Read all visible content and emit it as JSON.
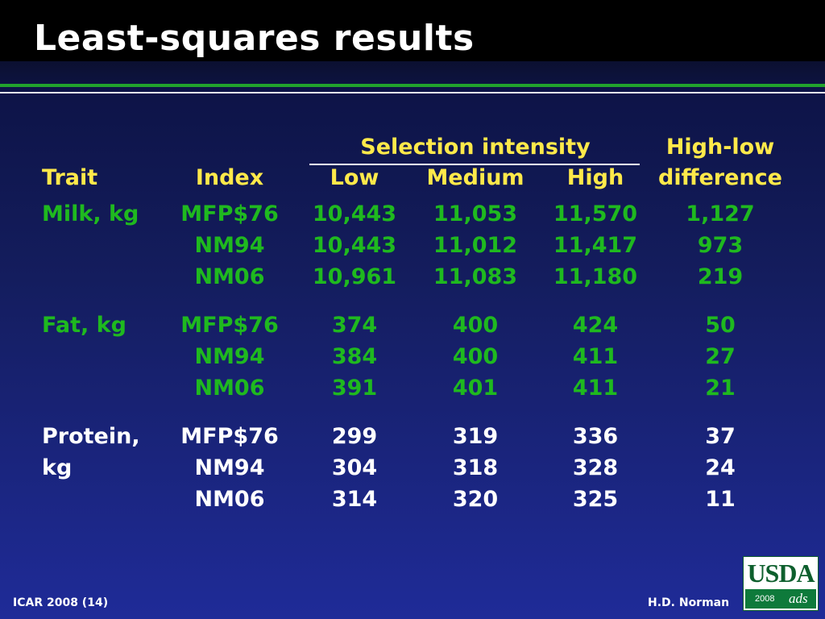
{
  "title": "Least-squares results",
  "header": {
    "selection_intensity": "Selection intensity",
    "high_low_line1": "High-low",
    "high_low_line2": "difference",
    "trait": "Trait",
    "index": "Index",
    "low": "Low",
    "medium": "Medium",
    "high": "High"
  },
  "rows": [
    {
      "trait": "Milk, kg",
      "index": "MFP$76",
      "low": "10,443",
      "medium": "11,053",
      "high": "11,570",
      "diff": "1,127"
    },
    {
      "trait": "",
      "index": "NM94",
      "low": "10,443",
      "medium": "11,012",
      "high": "11,417",
      "diff": "973"
    },
    {
      "trait": "",
      "index": "NM06",
      "low": "10,961",
      "medium": "11,083",
      "high": "11,180",
      "diff": "219"
    },
    {
      "trait": "Fat, kg",
      "index": "MFP$76",
      "low": "374",
      "medium": "400",
      "high": "424",
      "diff": "50"
    },
    {
      "trait": "",
      "index": "NM94",
      "low": "384",
      "medium": "400",
      "high": "411",
      "diff": "27"
    },
    {
      "trait": "",
      "index": "NM06",
      "low": "391",
      "medium": "401",
      "high": "411",
      "diff": "21"
    },
    {
      "trait": "Protein,",
      "index": "MFP$76",
      "low": "299",
      "medium": "319",
      "high": "336",
      "diff": "37"
    },
    {
      "trait": "kg",
      "index": "NM94",
      "low": "304",
      "medium": "318",
      "high": "328",
      "diff": "24"
    },
    {
      "trait": "",
      "index": "NM06",
      "low": "314",
      "medium": "320",
      "high": "325",
      "diff": "11"
    }
  ],
  "footer": {
    "left": "ICAR 2008 (14)",
    "right": "H.D. Norman"
  },
  "logo": {
    "text": "USDA",
    "year": "2008",
    "mark": "ads"
  },
  "colors": {
    "header": "#ffe94a",
    "milk_fat": "#1fb91f",
    "protein": "#ffffff"
  }
}
